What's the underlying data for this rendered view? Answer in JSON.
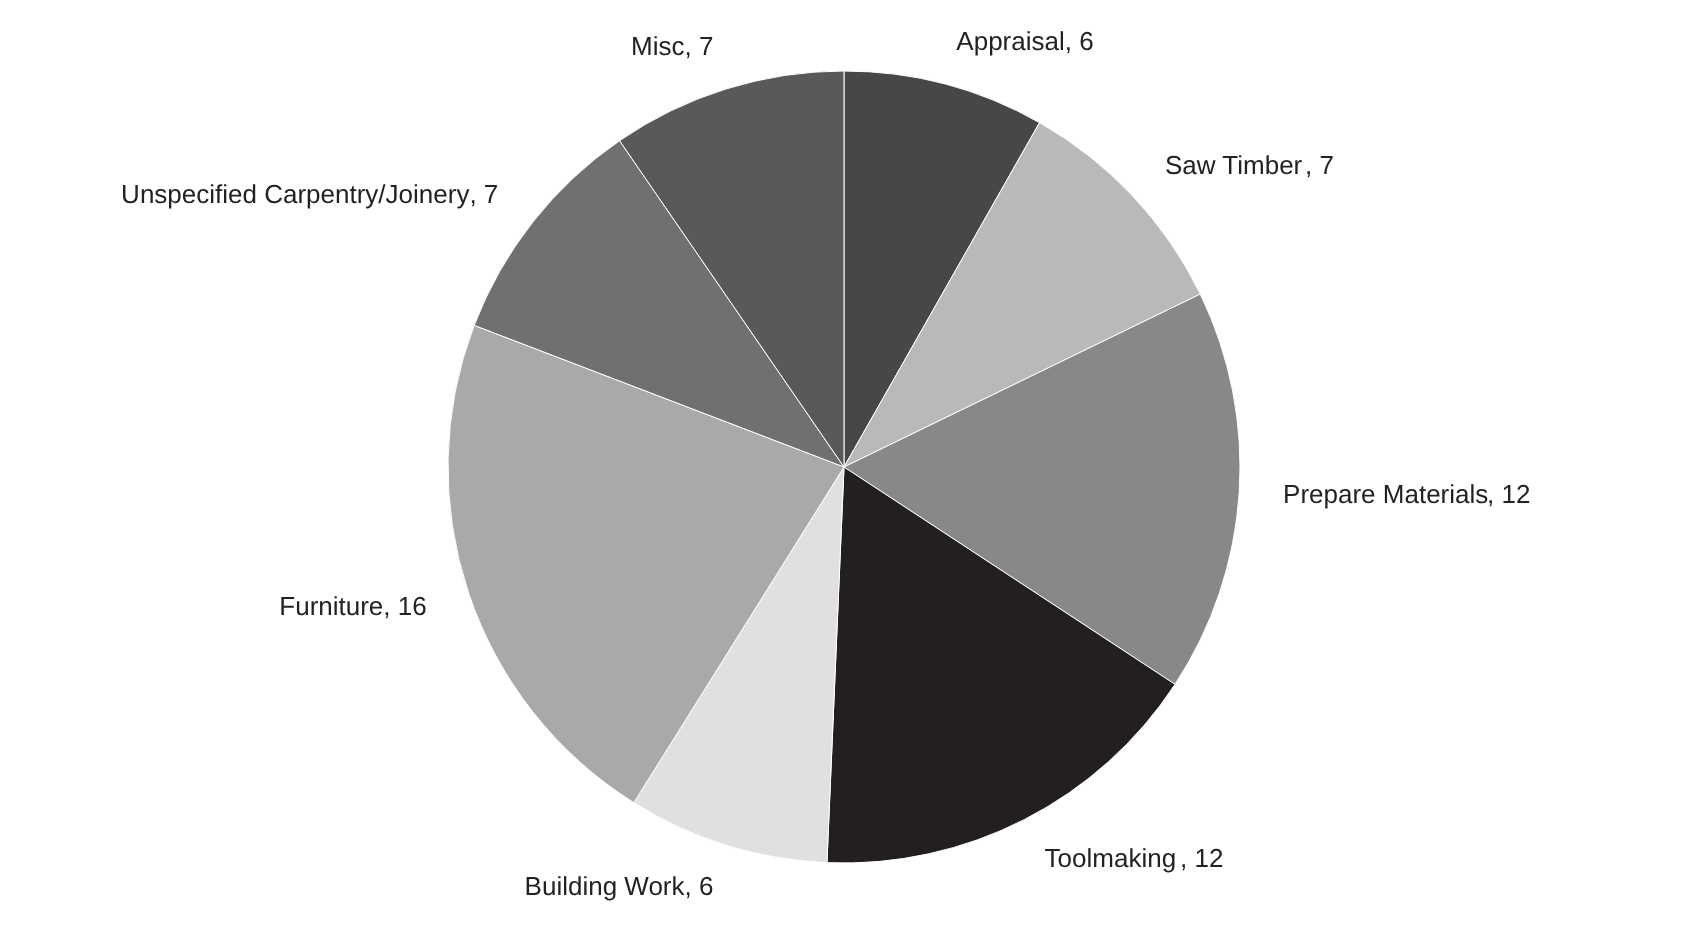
{
  "chart_data": {
    "type": "pie",
    "categories": [
      "Appraisal",
      "Saw Timber",
      "Prepare Materials",
      "Toolmaking",
      "Building Work",
      "Furniture",
      "Unspecified Carpentry/Joinery",
      "Misc"
    ],
    "values": [
      6,
      7,
      12,
      12,
      6,
      16,
      7,
      7
    ],
    "colors": [
      "#474747",
      "#b8b9bb",
      "#87888a",
      "#231f20",
      "#e0e0e2",
      "#a8a9ab",
      "#6f7072",
      "#58595b"
    ],
    "value_labels": [
      ", 6",
      ", 7",
      ", 12",
      ", 12",
      ", 6",
      ", 16",
      ", 7",
      ", 7"
    ],
    "legend": false
  }
}
